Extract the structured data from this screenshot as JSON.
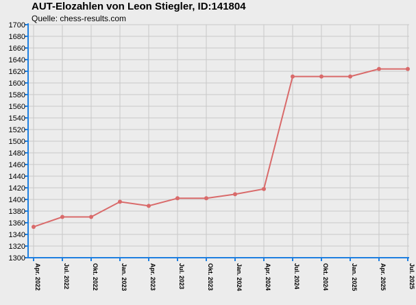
{
  "title": "AUT-Elozahlen von Leon Stiegler, ID:141804",
  "subtitle": "Quelle: chess-results.com",
  "colors": {
    "background": "#ececec",
    "grid": "#c8c8c8",
    "axis": "#1e7fe0",
    "line": "#d96a6a",
    "marker": "#d96a6a"
  },
  "chart_data": {
    "type": "line",
    "title": "AUT-Elozahlen von Leon Stiegler, ID:141804",
    "subtitle": "Quelle: chess-results.com",
    "xlabel": "",
    "ylabel": "",
    "ylim": [
      1300,
      1700
    ],
    "ytick_step": 20,
    "grid": true,
    "categories": [
      "Apr. 2022",
      "Jul. 2022",
      "Okt. 2022",
      "Jan. 2023",
      "Apr. 2023",
      "Jul. 2023",
      "Okt. 2023",
      "Jan. 2024",
      "Apr. 2024",
      "Jul. 2024",
      "Okt. 2024",
      "Jan. 2025",
      "Apr. 2025",
      "Jul. 2025"
    ],
    "series": [
      {
        "values": [
          1353,
          1370,
          1370,
          1396,
          1389,
          1402,
          1402,
          1409,
          1418,
          1611,
          1611,
          1611,
          1624,
          1624
        ]
      }
    ]
  }
}
